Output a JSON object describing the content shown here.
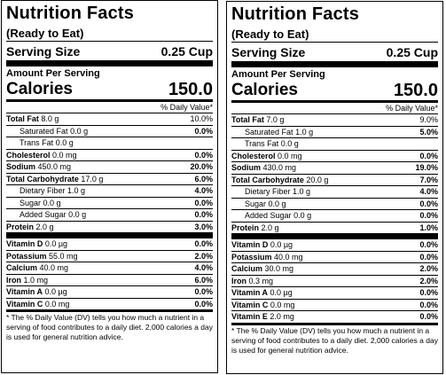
{
  "labels": [
    {
      "title": "Nutrition Facts",
      "subtitle": "(Ready to Eat)",
      "serving_label": "Serving Size",
      "serving_value": "0.25 Cup",
      "amount_per_serving": "Amount Per Serving",
      "calories_label": "Calories",
      "calories_value": "150.0",
      "dv_header": "% Daily Value*",
      "nutrients": [
        {
          "name": "Total Fat",
          "amount": "8.0 g",
          "pct": "10.0%"
        },
        {
          "name": "Saturated Fat",
          "amount": "0.0 g",
          "pct": "0.0%"
        },
        {
          "name": "Trans Fat",
          "amount": "0.0 g",
          "pct": ""
        },
        {
          "name": "Cholesterol",
          "amount": "0.0 mg",
          "pct": "0.0%"
        },
        {
          "name": "Sodium",
          "amount": "450.0 mg",
          "pct": "20.0%"
        },
        {
          "name": "Total Carbohydrate",
          "amount": "17.0 g",
          "pct": "6.0%"
        },
        {
          "name": "Dietary Fiber",
          "amount": "1.0 g",
          "pct": "4.0%"
        },
        {
          "name": "Sugar",
          "amount": "0.0 g",
          "pct": "0.0%"
        },
        {
          "name": "Added Sugar",
          "amount": "0.0 g",
          "pct": "0.0%"
        },
        {
          "name": "Protein",
          "amount": "2.0 g",
          "pct": "3.0%"
        }
      ],
      "vitamins": [
        {
          "name": "Vitamin D",
          "amount": "0.0 µg",
          "pct": "0.0%"
        },
        {
          "name": "Potassium",
          "amount": "55.0 mg",
          "pct": "2.0%"
        },
        {
          "name": "Calcium",
          "amount": "40.0 mg",
          "pct": "4.0%"
        },
        {
          "name": "Iron",
          "amount": "1.0 mg",
          "pct": "6.0%"
        },
        {
          "name": "Vitamin A",
          "amount": "0.0 µg",
          "pct": "0.0%"
        },
        {
          "name": "Vitamin C",
          "amount": "0.0 mg",
          "pct": "0.0%"
        }
      ],
      "footnote": "* The % Daily Value (DV) tells you how much a nutrient in a serving of food contributes to a daily diet. 2,000 calories a day is used for general nutrition advice."
    },
    {
      "title": "Nutrition Facts",
      "subtitle": "(Ready to Eat)",
      "serving_label": "Serving Size",
      "serving_value": "0.25 Cup",
      "amount_per_serving": "Amount Per Serving",
      "calories_label": "Calories",
      "calories_value": "150.0",
      "dv_header": "% Daily Value*",
      "nutrients": [
        {
          "name": "Total Fat",
          "amount": "7.0 g",
          "pct": "9.0%"
        },
        {
          "name": "Saturated Fat",
          "amount": "1.0 g",
          "pct": "5.0%"
        },
        {
          "name": "Trans Fat",
          "amount": "0.0 g",
          "pct": ""
        },
        {
          "name": "Cholesterol",
          "amount": "0.0 mg",
          "pct": "0.0%"
        },
        {
          "name": "Sodium",
          "amount": "430.0 mg",
          "pct": "19.0%"
        },
        {
          "name": "Total Carbohydrate",
          "amount": "20.0 g",
          "pct": "7.0%"
        },
        {
          "name": "Dietary Fiber",
          "amount": "1.0 g",
          "pct": "4.0%"
        },
        {
          "name": "Sugar",
          "amount": "0.0 g",
          "pct": "0.0%"
        },
        {
          "name": "Added Sugar",
          "amount": "0.0 g",
          "pct": "0.0%"
        },
        {
          "name": "Protein",
          "amount": "2.0 g",
          "pct": "1.0%"
        }
      ],
      "vitamins": [
        {
          "name": "Vitamin D",
          "amount": "0.0 µg",
          "pct": "0.0%"
        },
        {
          "name": "Potassium",
          "amount": "40.0 mg",
          "pct": "0.0%"
        },
        {
          "name": "Calcium",
          "amount": "30.0 mg",
          "pct": "2.0%"
        },
        {
          "name": "Iron",
          "amount": "0.3 mg",
          "pct": "2.0%"
        },
        {
          "name": "Vitamin A",
          "amount": "0.0 µg",
          "pct": "0.0%"
        },
        {
          "name": "Vitamin C",
          "amount": "0.0 mg",
          "pct": "0.0%"
        },
        {
          "name": "Vitamin E",
          "amount": "2.0 mg",
          "pct": "0.0%"
        }
      ],
      "footnote": "* The % Daily Value (DV) tells you how much a nutrient in a serving of food contributes to a daily diet. 2,000 calories a day is used for general nutrition advice."
    }
  ]
}
